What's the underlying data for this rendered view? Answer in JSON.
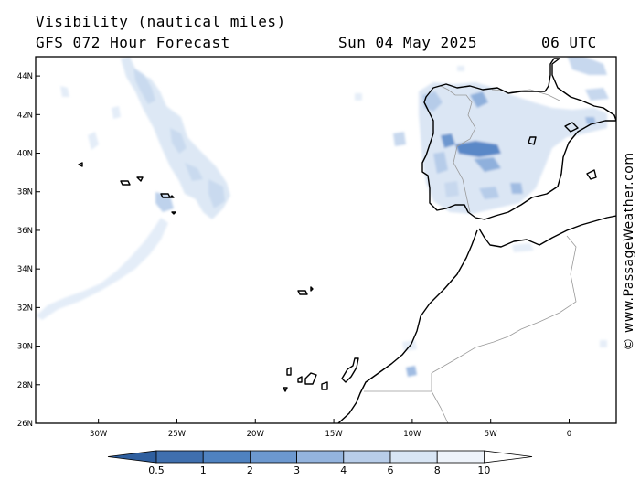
{
  "title": "Visibility (nautical miles)",
  "subtitle": "GFS 072 Hour Forecast",
  "valid_date": "Sun 04 May 2025",
  "valid_time": "06 UTC",
  "copyright": "© www.PassageWeather.com",
  "map": {
    "lat_range": [
      26,
      45
    ],
    "lon_range": [
      -34,
      3
    ],
    "lat_labels": [
      "44N",
      "42N",
      "40N",
      "38N",
      "36N",
      "34N",
      "32N",
      "30N",
      "28N",
      "26N"
    ],
    "lon_labels": [
      "30W",
      "25W",
      "20W",
      "15W",
      "10W",
      "5W",
      "0"
    ]
  },
  "legend": {
    "labels": [
      "0.5",
      "1",
      "2",
      "3",
      "4",
      "6",
      "8",
      "10"
    ],
    "colors": [
      "#3f6fae",
      "#4f82c0",
      "#6c98cf",
      "#94b4de",
      "#b8cde9",
      "#d8e5f4",
      "#eef3fa",
      "#ffffff"
    ]
  }
}
